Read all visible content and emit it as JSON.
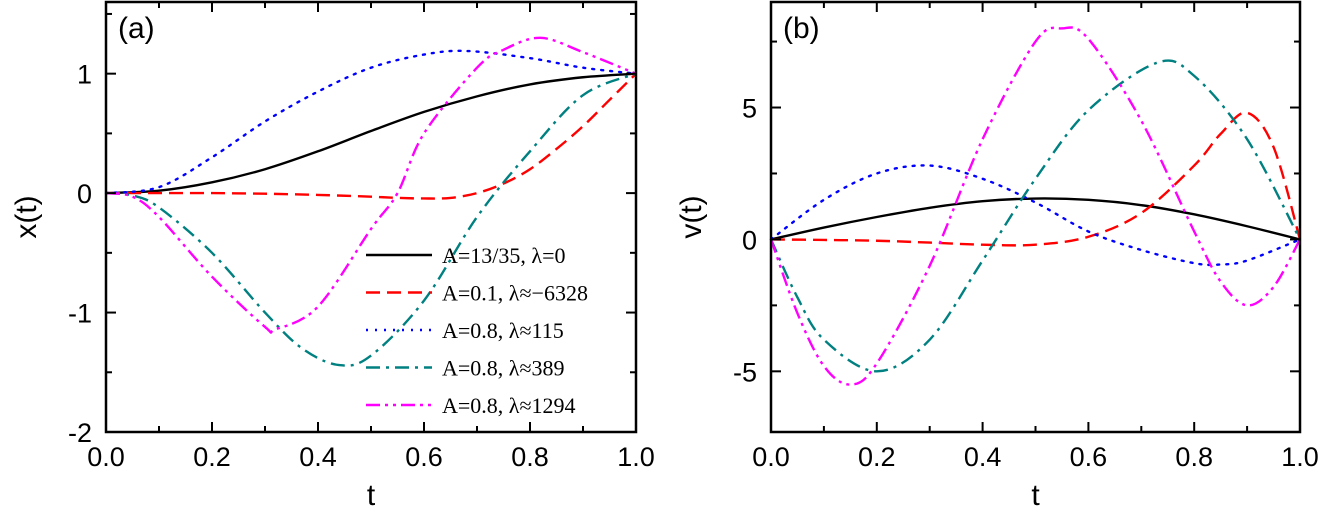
{
  "chart_data": [
    {
      "type": "line",
      "panel_label": "(a)",
      "xlabel": "t",
      "ylabel": "x(t)",
      "xlim": [
        0,
        1
      ],
      "ylim": [
        -2,
        1.6
      ],
      "xticks": [
        "0.0",
        "0.2",
        "0.4",
        "0.6",
        "0.8",
        "1.0"
      ],
      "yticks": [
        "-2",
        "-1",
        "0",
        "1"
      ],
      "grid": false,
      "legend_position": "bottom-right",
      "series": [
        {
          "name": "A=13/35, λ=0",
          "color": "#000000",
          "dash": "solid",
          "x": [
            0,
            0.1,
            0.2,
            0.3,
            0.4,
            0.5,
            0.6,
            0.7,
            0.8,
            0.9,
            1
          ],
          "y": [
            0,
            0.02,
            0.09,
            0.2,
            0.35,
            0.52,
            0.68,
            0.81,
            0.91,
            0.97,
            1
          ]
        },
        {
          "name": "A=0.1, λ≈−6328",
          "color": "#ff0000",
          "dash": "dash",
          "x": [
            0,
            0.1,
            0.2,
            0.3,
            0.4,
            0.5,
            0.55,
            0.6,
            0.65,
            0.7,
            0.75,
            0.8,
            0.85,
            0.9,
            0.95,
            1
          ],
          "y": [
            0,
            0,
            0,
            -0.005,
            -0.015,
            -0.03,
            -0.04,
            -0.045,
            -0.04,
            0,
            0.08,
            0.2,
            0.37,
            0.56,
            0.78,
            1
          ]
        },
        {
          "name": "A=0.8, λ≈115",
          "color": "#0000ff",
          "dash": "dot",
          "x": [
            0,
            0.1,
            0.2,
            0.3,
            0.4,
            0.5,
            0.6,
            0.68,
            0.8,
            0.9,
            1
          ],
          "y": [
            0,
            0.05,
            0.3,
            0.6,
            0.85,
            1.05,
            1.16,
            1.19,
            1.13,
            1.05,
            1
          ]
        },
        {
          "name": "A=0.8, λ≈389",
          "color": "#008080",
          "dash": "dashdot",
          "x": [
            0,
            0.05,
            0.1,
            0.2,
            0.3,
            0.37,
            0.44,
            0.5,
            0.6,
            0.7,
            0.8,
            0.9,
            1
          ],
          "y": [
            0,
            -0.02,
            -0.12,
            -0.5,
            -1.0,
            -1.3,
            -1.44,
            -1.36,
            -0.9,
            -0.2,
            0.35,
            0.82,
            1
          ]
        },
        {
          "name": "A=0.8, λ≈1294",
          "color": "#ff00ff",
          "dash": "dashdotdot",
          "x": [
            0,
            0.05,
            0.1,
            0.2,
            0.3,
            0.32,
            0.4,
            0.5,
            0.55,
            0.6,
            0.7,
            0.75,
            0.82,
            0.9,
            1
          ],
          "y": [
            0,
            -0.03,
            -0.2,
            -0.7,
            -1.12,
            -1.14,
            -0.95,
            -0.3,
            0.0,
            0.5,
            1.05,
            1.2,
            1.3,
            1.18,
            1
          ]
        }
      ]
    },
    {
      "type": "line",
      "panel_label": "(b)",
      "xlabel": "t",
      "ylabel": "v(t)",
      "xlim": [
        0,
        1
      ],
      "ylim": [
        -7.3,
        9
      ],
      "xticks": [
        "0.0",
        "0.2",
        "0.4",
        "0.6",
        "0.8",
        "1.0"
      ],
      "yticks": [
        "-5",
        "0",
        "5"
      ],
      "grid": false,
      "series": [
        {
          "color": "#000000",
          "dash": "solid",
          "x": [
            0,
            0.1,
            0.2,
            0.3,
            0.4,
            0.5,
            0.6,
            0.7,
            0.8,
            0.9,
            1
          ],
          "y": [
            0,
            0.45,
            0.85,
            1.2,
            1.45,
            1.55,
            1.5,
            1.3,
            0.95,
            0.5,
            0
          ]
        },
        {
          "color": "#ff0000",
          "dash": "dash",
          "x": [
            0,
            0.1,
            0.2,
            0.3,
            0.4,
            0.5,
            0.6,
            0.7,
            0.8,
            0.85,
            0.9,
            0.95,
            1
          ],
          "y": [
            0,
            -0.02,
            -0.05,
            -0.12,
            -0.2,
            -0.2,
            0.1,
            1.0,
            2.8,
            4.0,
            4.8,
            3.5,
            0
          ]
        },
        {
          "color": "#0000ff",
          "dash": "dot",
          "x": [
            0,
            0.1,
            0.2,
            0.3,
            0.4,
            0.5,
            0.6,
            0.7,
            0.8,
            0.85,
            0.9,
            1
          ],
          "y": [
            0,
            1.5,
            2.5,
            2.8,
            2.3,
            1.4,
            0.3,
            -0.4,
            -0.9,
            -0.95,
            -0.8,
            0
          ]
        },
        {
          "color": "#008080",
          "dash": "dashdot",
          "x": [
            0,
            0.05,
            0.1,
            0.2,
            0.3,
            0.4,
            0.5,
            0.6,
            0.73,
            0.8,
            0.9,
            1
          ],
          "y": [
            0,
            -2.2,
            -3.8,
            -5.0,
            -3.8,
            -0.8,
            2.3,
            4.9,
            6.7,
            6.2,
            3.8,
            0
          ]
        },
        {
          "color": "#ff00ff",
          "dash": "dashdotdot",
          "x": [
            0,
            0.05,
            0.1,
            0.15,
            0.2,
            0.3,
            0.4,
            0.5,
            0.55,
            0.6,
            0.7,
            0.8,
            0.85,
            0.9,
            0.95,
            1
          ],
          "y": [
            0,
            -2.8,
            -4.8,
            -5.5,
            -4.7,
            -1.0,
            3.8,
            7.5,
            8.0,
            7.6,
            4.5,
            0.3,
            -1.6,
            -2.5,
            -1.8,
            0
          ]
        }
      ]
    }
  ]
}
